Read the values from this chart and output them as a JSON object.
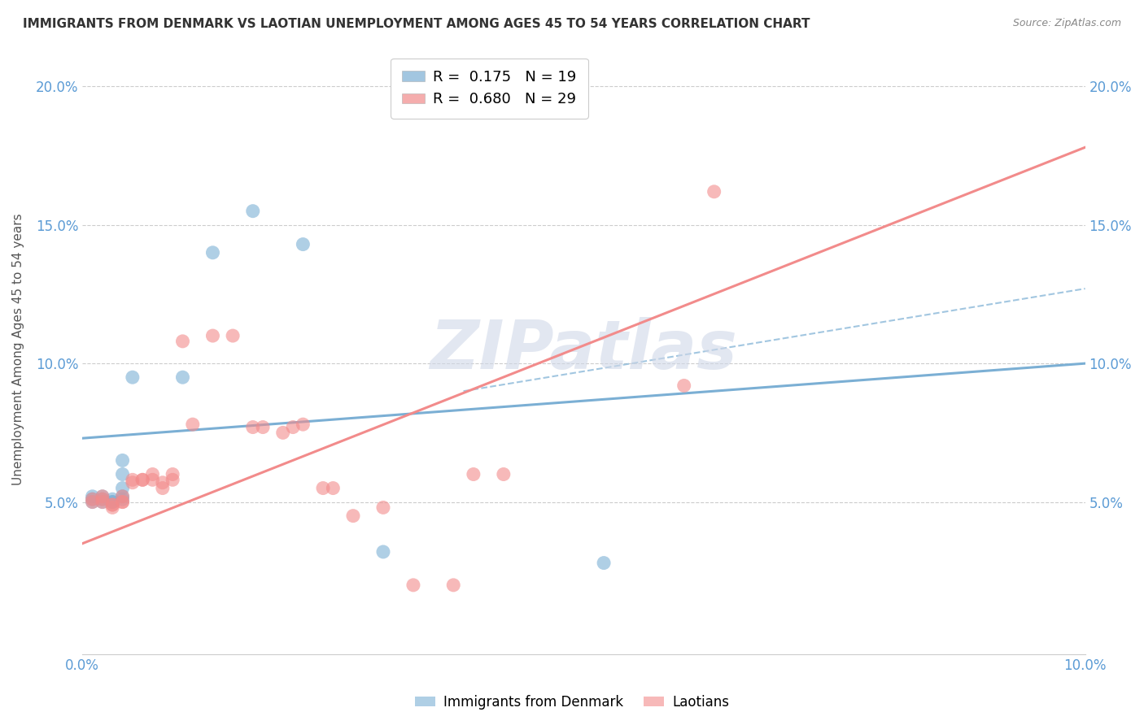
{
  "title": "IMMIGRANTS FROM DENMARK VS LAOTIAN UNEMPLOYMENT AMONG AGES 45 TO 54 YEARS CORRELATION CHART",
  "source": "Source: ZipAtlas.com",
  "ylabel": "Unemployment Among Ages 45 to 54 years",
  "xlim": [
    0.0,
    0.1
  ],
  "ylim": [
    -0.005,
    0.215
  ],
  "yticks": [
    0.05,
    0.1,
    0.15,
    0.2
  ],
  "ytick_labels": [
    "5.0%",
    "10.0%",
    "15.0%",
    "20.0%"
  ],
  "xticks": [
    0.0,
    0.02,
    0.04,
    0.06,
    0.08,
    0.1
  ],
  "xtick_labels": [
    "0.0%",
    "",
    "",
    "",
    "",
    "10.0%"
  ],
  "legend_r1_val": "0.175",
  "legend_r1_n": "19",
  "legend_r2_val": "0.680",
  "legend_r2_n": "29",
  "blue_color": "#7bafd4",
  "pink_color": "#f28b8b",
  "title_color": "#333333",
  "axis_color": "#5b9bd5",
  "grid_color": "#cccccc",
  "watermark_color": "#d0d8e8",
  "denmark_points": [
    [
      0.001,
      0.05
    ],
    [
      0.001,
      0.052
    ],
    [
      0.001,
      0.051
    ],
    [
      0.002,
      0.051
    ],
    [
      0.002,
      0.052
    ],
    [
      0.002,
      0.05
    ],
    [
      0.003,
      0.05
    ],
    [
      0.003,
      0.051
    ],
    [
      0.003,
      0.05
    ],
    [
      0.004,
      0.051
    ],
    [
      0.004,
      0.052
    ],
    [
      0.004,
      0.055
    ],
    [
      0.004,
      0.06
    ],
    [
      0.004,
      0.065
    ],
    [
      0.005,
      0.095
    ],
    [
      0.01,
      0.095
    ],
    [
      0.013,
      0.14
    ],
    [
      0.017,
      0.155
    ],
    [
      0.022,
      0.143
    ],
    [
      0.03,
      0.032
    ],
    [
      0.052,
      0.028
    ]
  ],
  "laotian_points": [
    [
      0.001,
      0.05
    ],
    [
      0.001,
      0.051
    ],
    [
      0.002,
      0.051
    ],
    [
      0.002,
      0.052
    ],
    [
      0.002,
      0.05
    ],
    [
      0.003,
      0.049
    ],
    [
      0.003,
      0.048
    ],
    [
      0.003,
      0.049
    ],
    [
      0.004,
      0.05
    ],
    [
      0.004,
      0.052
    ],
    [
      0.004,
      0.05
    ],
    [
      0.005,
      0.058
    ],
    [
      0.005,
      0.057
    ],
    [
      0.006,
      0.058
    ],
    [
      0.006,
      0.058
    ],
    [
      0.007,
      0.06
    ],
    [
      0.007,
      0.058
    ],
    [
      0.008,
      0.055
    ],
    [
      0.008,
      0.057
    ],
    [
      0.009,
      0.058
    ],
    [
      0.009,
      0.06
    ],
    [
      0.01,
      0.108
    ],
    [
      0.011,
      0.078
    ],
    [
      0.013,
      0.11
    ],
    [
      0.015,
      0.11
    ],
    [
      0.017,
      0.077
    ],
    [
      0.018,
      0.077
    ],
    [
      0.02,
      0.075
    ],
    [
      0.021,
      0.077
    ],
    [
      0.022,
      0.078
    ],
    [
      0.024,
      0.055
    ],
    [
      0.025,
      0.055
    ],
    [
      0.027,
      0.045
    ],
    [
      0.03,
      0.048
    ],
    [
      0.033,
      0.02
    ],
    [
      0.037,
      0.02
    ],
    [
      0.039,
      0.06
    ],
    [
      0.042,
      0.06
    ],
    [
      0.06,
      0.092
    ],
    [
      0.063,
      0.162
    ]
  ],
  "denmark_line": {
    "x0": 0.0,
    "y0": 0.073,
    "x1": 0.1,
    "y1": 0.1
  },
  "laotian_line": {
    "x0": 0.0,
    "y0": 0.035,
    "x1": 0.1,
    "y1": 0.178
  },
  "blue_dash_line": {
    "x0": 0.038,
    "y0": 0.09,
    "x1": 0.1,
    "y1": 0.127
  }
}
